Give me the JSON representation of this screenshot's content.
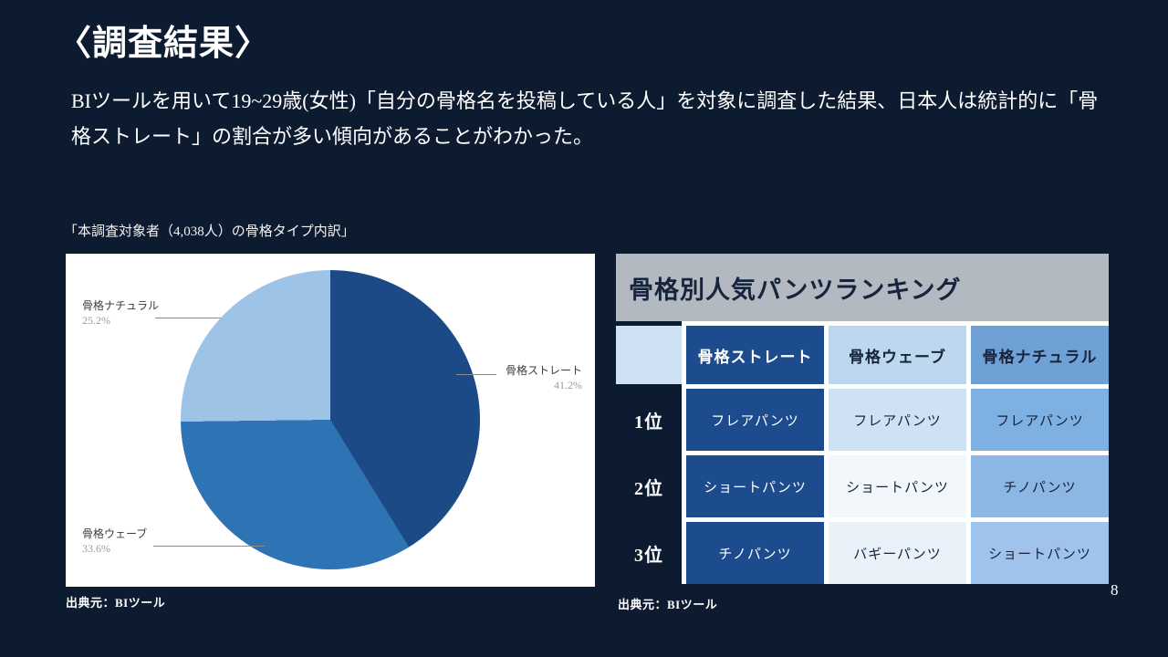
{
  "slide": {
    "title": "〈調査結果〉",
    "body": "BIツールを用いて19~29歳(女性)「自分の骨格名を投稿している人」を対象に調査した結果、日本人は統計的に「骨格ストレート」の割合が多い傾向があることがわかった。",
    "page_number": "8"
  },
  "pie_panel": {
    "caption": "「本調査対象者（4,038人）の骨格タイプ内訳」",
    "source": "出典元：BIツール"
  },
  "chart_data": {
    "type": "pie",
    "title": "本調査対象者（4,038人）の骨格タイプ内訳",
    "labels": [
      "骨格ストレート",
      "骨格ウェーブ",
      "骨格ナチュラル"
    ],
    "values": [
      41.2,
      33.6,
      25.2
    ],
    "percent_labels": [
      "41.2%",
      "33.6%",
      "25.2%"
    ],
    "unit": "%",
    "colors": [
      "#1b4a86",
      "#2e74b5",
      "#9dc3e6"
    ],
    "start_angle": "top",
    "direction": "clockwise",
    "legend": "none"
  },
  "ranking_table": {
    "title": "骨格別人気パンツランキング",
    "source": "出典元：BIツール",
    "columns": [
      "骨格ストレート",
      "骨格ウェーブ",
      "骨格ナチュラル"
    ],
    "rows": [
      {
        "rank": "1位",
        "cells": [
          "フレアパンツ",
          "フレアパンツ",
          "フレアパンツ"
        ]
      },
      {
        "rank": "2位",
        "cells": [
          "ショートパンツ",
          "ショートパンツ",
          "チノパンツ"
        ]
      },
      {
        "rank": "3位",
        "cells": [
          "チノパンツ",
          "バギーパンツ",
          "ショートパンツ"
        ]
      }
    ]
  },
  "colors": {
    "background": "#0d1b31",
    "panel": "#ffffff",
    "table_title_bg": "#b3b9c0",
    "straight_cell_bg": "#1c4b8e",
    "wave_header_bg": "#bdd7ee",
    "natural_header_bg": "#6fa0d6",
    "dark_text": "#16243d"
  }
}
